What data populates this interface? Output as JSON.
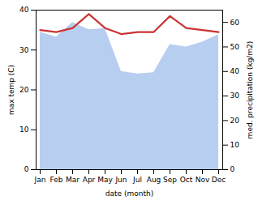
{
  "chart_data": {
    "type": "line",
    "categories": [
      "Jan",
      "Feb",
      "Mar",
      "Apr",
      "May",
      "Jun",
      "Jul",
      "Aug",
      "Sep",
      "Oct",
      "Nov",
      "Dec"
    ],
    "xlabel": "date (month)",
    "ylabel": "max temp (C)",
    "y2label": "med. precipitation (kg/m2)",
    "ylim": [
      0,
      40
    ],
    "yticks": [
      0,
      10,
      20,
      30,
      40
    ],
    "y2lim": [
      0,
      65
    ],
    "y2ticks": [
      0,
      10,
      20,
      30,
      40,
      50,
      60
    ],
    "series": [
      {
        "type": "area",
        "axis": "y2",
        "color": "#b8cef0",
        "values": [
          56.0,
          54.0,
          60.0,
          57.0,
          57.5,
          40.0,
          39.0,
          39.5,
          51.0,
          50.0,
          52.0,
          55.0
        ]
      },
      {
        "type": "line",
        "color": "#cc3333",
        "values": [
          35.0,
          34.5,
          35.5,
          39.0,
          35.5,
          34.0,
          34.5,
          34.5,
          38.5,
          35.5,
          35.0,
          34.5
        ]
      }
    ]
  }
}
